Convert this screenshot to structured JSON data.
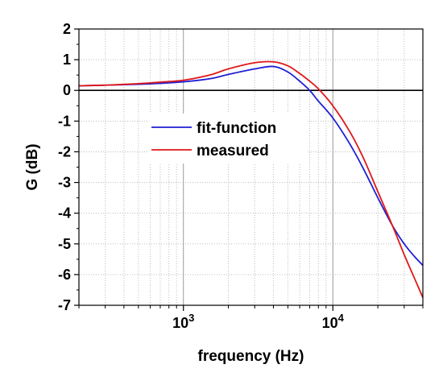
{
  "chart_data": {
    "type": "line",
    "xlabel": "frequency (Hz)",
    "ylabel": "G (dB)",
    "x_scale": "log",
    "xlim": [
      200,
      40000
    ],
    "ylim": [
      -7,
      2
    ],
    "y_ticks": [
      "2",
      "1",
      "0",
      "-1",
      "-2",
      "-3",
      "-4",
      "-5",
      "-6",
      "-7"
    ],
    "x_ticks": [
      {
        "base": "10",
        "exp": "3",
        "value": 1000
      },
      {
        "base": "10",
        "exp": "4",
        "value": 10000
      }
    ],
    "grid": true,
    "reference_line_y": 0,
    "legend_position": "center-left",
    "series": [
      {
        "name": "fit-function",
        "color": "#1f1fd6",
        "points": [
          [
            200,
            0.15
          ],
          [
            300,
            0.17
          ],
          [
            500,
            0.2
          ],
          [
            700,
            0.23
          ],
          [
            1000,
            0.28
          ],
          [
            1500,
            0.38
          ],
          [
            2000,
            0.52
          ],
          [
            3000,
            0.7
          ],
          [
            4000,
            0.78
          ],
          [
            5000,
            0.6
          ],
          [
            6000,
            0.3
          ],
          [
            7000,
            0.0
          ],
          [
            8000,
            -0.35
          ],
          [
            10000,
            -0.9
          ],
          [
            13000,
            -1.75
          ],
          [
            16000,
            -2.55
          ],
          [
            20000,
            -3.5
          ],
          [
            25000,
            -4.4
          ],
          [
            30000,
            -5.0
          ],
          [
            35000,
            -5.4
          ],
          [
            40000,
            -5.7
          ]
        ]
      },
      {
        "name": "measured",
        "color": "#e01818",
        "points": [
          [
            200,
            0.15
          ],
          [
            300,
            0.17
          ],
          [
            500,
            0.22
          ],
          [
            700,
            0.27
          ],
          [
            1000,
            0.33
          ],
          [
            1500,
            0.5
          ],
          [
            2000,
            0.7
          ],
          [
            3000,
            0.9
          ],
          [
            4000,
            0.93
          ],
          [
            5000,
            0.8
          ],
          [
            6000,
            0.55
          ],
          [
            7000,
            0.3
          ],
          [
            8000,
            0.05
          ],
          [
            10000,
            -0.5
          ],
          [
            13000,
            -1.35
          ],
          [
            16000,
            -2.2
          ],
          [
            20000,
            -3.3
          ],
          [
            25000,
            -4.4
          ],
          [
            30000,
            -5.35
          ],
          [
            35000,
            -6.1
          ],
          [
            40000,
            -6.75
          ]
        ]
      }
    ]
  }
}
